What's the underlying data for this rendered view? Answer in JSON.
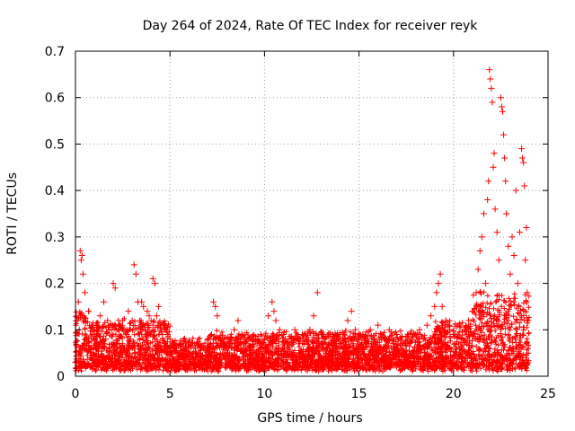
{
  "chart_data": {
    "type": "scatter",
    "title": "Day 264 of 2024, Rate Of TEC Index for receiver reyk",
    "xlabel": "GPS time / hours",
    "ylabel": "ROTI / TECUs",
    "xlim": [
      0,
      25
    ],
    "ylim": [
      0,
      0.7
    ],
    "x_ticks": [
      0,
      5,
      10,
      15,
      20,
      25
    ],
    "x_tick_labels": [
      "0",
      "5",
      "10",
      "15",
      "20",
      "25"
    ],
    "y_ticks": [
      0,
      0.1,
      0.2,
      0.3,
      0.4,
      0.5,
      0.6,
      0.7
    ],
    "y_tick_labels": [
      "0",
      "0.1",
      "0.2",
      "0.3",
      "0.4",
      "0.5",
      "0.6",
      "0.7"
    ],
    "grid": true,
    "marker": "plus",
    "color": "#ff0000",
    "series": [
      {
        "points": [
          [
            0.0,
            0.03
          ],
          [
            0.1,
            0.12
          ],
          [
            0.15,
            0.16
          ],
          [
            0.2,
            0.1
          ],
          [
            0.25,
            0.27
          ],
          [
            0.3,
            0.25
          ],
          [
            0.35,
            0.26
          ],
          [
            0.4,
            0.22
          ],
          [
            0.45,
            0.06
          ],
          [
            0.5,
            0.18
          ],
          [
            0.6,
            0.08
          ],
          [
            0.7,
            0.14
          ],
          [
            0.8,
            0.05
          ],
          [
            0.9,
            0.11
          ],
          [
            1.0,
            0.1
          ],
          [
            1.1,
            0.07
          ],
          [
            1.2,
            0.09
          ],
          [
            1.3,
            0.13
          ],
          [
            1.4,
            0.06
          ],
          [
            1.5,
            0.16
          ],
          [
            1.6,
            0.08
          ],
          [
            1.7,
            0.12
          ],
          [
            1.8,
            0.05
          ],
          [
            1.9,
            0.1
          ],
          [
            2.0,
            0.2
          ],
          [
            2.1,
            0.19
          ],
          [
            2.2,
            0.07
          ],
          [
            2.3,
            0.11
          ],
          [
            2.4,
            0.05
          ],
          [
            2.5,
            0.12
          ],
          [
            2.6,
            0.06
          ],
          [
            2.7,
            0.09
          ],
          [
            2.8,
            0.14
          ],
          [
            2.9,
            0.08
          ],
          [
            3.0,
            0.12
          ],
          [
            3.1,
            0.24
          ],
          [
            3.2,
            0.22
          ],
          [
            3.3,
            0.16
          ],
          [
            3.4,
            0.12
          ],
          [
            3.5,
            0.16
          ],
          [
            3.6,
            0.15
          ],
          [
            3.7,
            0.1
          ],
          [
            3.8,
            0.14
          ],
          [
            3.9,
            0.13
          ],
          [
            4.0,
            0.12
          ],
          [
            4.1,
            0.21
          ],
          [
            4.2,
            0.2
          ],
          [
            4.3,
            0.13
          ],
          [
            4.4,
            0.15
          ],
          [
            4.5,
            0.11
          ],
          [
            4.6,
            0.09
          ],
          [
            4.7,
            0.07
          ],
          [
            4.8,
            0.1
          ],
          [
            5.0,
            0.08
          ],
          [
            5.2,
            0.06
          ],
          [
            5.4,
            0.05
          ],
          [
            5.6,
            0.07
          ],
          [
            5.8,
            0.04
          ],
          [
            6.0,
            0.05
          ],
          [
            6.2,
            0.03
          ],
          [
            6.4,
            0.05
          ],
          [
            6.6,
            0.04
          ],
          [
            6.8,
            0.06
          ],
          [
            7.0,
            0.08
          ],
          [
            7.2,
            0.09
          ],
          [
            7.3,
            0.16
          ],
          [
            7.4,
            0.15
          ],
          [
            7.5,
            0.13
          ],
          [
            7.6,
            0.08
          ],
          [
            7.8,
            0.07
          ],
          [
            8.0,
            0.06
          ],
          [
            8.2,
            0.08
          ],
          [
            8.4,
            0.1
          ],
          [
            8.6,
            0.12
          ],
          [
            8.8,
            0.09
          ],
          [
            9.0,
            0.07
          ],
          [
            9.2,
            0.06
          ],
          [
            9.4,
            0.08
          ],
          [
            9.6,
            0.07
          ],
          [
            9.8,
            0.09
          ],
          [
            10.0,
            0.08
          ],
          [
            10.2,
            0.13
          ],
          [
            10.4,
            0.16
          ],
          [
            10.5,
            0.14
          ],
          [
            10.6,
            0.12
          ],
          [
            10.8,
            0.1
          ],
          [
            11.0,
            0.09
          ],
          [
            11.2,
            0.07
          ],
          [
            11.4,
            0.08
          ],
          [
            11.6,
            0.1
          ],
          [
            11.8,
            0.07
          ],
          [
            12.0,
            0.09
          ],
          [
            12.2,
            0.08
          ],
          [
            12.4,
            0.1
          ],
          [
            12.6,
            0.13
          ],
          [
            12.8,
            0.18
          ],
          [
            13.0,
            0.09
          ],
          [
            13.2,
            0.08
          ],
          [
            13.4,
            0.07
          ],
          [
            13.6,
            0.09
          ],
          [
            13.8,
            0.08
          ],
          [
            14.0,
            0.07
          ],
          [
            14.2,
            0.09
          ],
          [
            14.4,
            0.12
          ],
          [
            14.6,
            0.14
          ],
          [
            14.8,
            0.1
          ],
          [
            15.0,
            0.08
          ],
          [
            15.2,
            0.09
          ],
          [
            15.4,
            0.07
          ],
          [
            15.6,
            0.1
          ],
          [
            15.8,
            0.08
          ],
          [
            16.0,
            0.11
          ],
          [
            16.2,
            0.09
          ],
          [
            16.4,
            0.08
          ],
          [
            16.6,
            0.1
          ],
          [
            16.8,
            0.07
          ],
          [
            17.0,
            0.09
          ],
          [
            17.2,
            0.08
          ],
          [
            17.4,
            0.07
          ],
          [
            17.6,
            0.09
          ],
          [
            17.8,
            0.08
          ],
          [
            18.0,
            0.09
          ],
          [
            18.2,
            0.1
          ],
          [
            18.4,
            0.08
          ],
          [
            18.6,
            0.11
          ],
          [
            18.8,
            0.13
          ],
          [
            19.0,
            0.15
          ],
          [
            19.1,
            0.18
          ],
          [
            19.2,
            0.2
          ],
          [
            19.3,
            0.22
          ],
          [
            19.4,
            0.15
          ],
          [
            19.6,
            0.12
          ],
          [
            19.8,
            0.1
          ],
          [
            20.0,
            0.09
          ],
          [
            20.2,
            0.11
          ],
          [
            20.4,
            0.08
          ],
          [
            20.6,
            0.1
          ],
          [
            20.8,
            0.12
          ],
          [
            21.0,
            0.14
          ],
          [
            21.2,
            0.18
          ],
          [
            21.3,
            0.23
          ],
          [
            21.4,
            0.27
          ],
          [
            21.5,
            0.3
          ],
          [
            21.6,
            0.35
          ],
          [
            21.7,
            0.2
          ],
          [
            21.8,
            0.38
          ],
          [
            21.85,
            0.42
          ],
          [
            21.9,
            0.66
          ],
          [
            21.95,
            0.64
          ],
          [
            22.0,
            0.62
          ],
          [
            22.05,
            0.59
          ],
          [
            22.1,
            0.45
          ],
          [
            22.15,
            0.48
          ],
          [
            22.2,
            0.36
          ],
          [
            22.3,
            0.31
          ],
          [
            22.4,
            0.25
          ],
          [
            22.5,
            0.6
          ],
          [
            22.55,
            0.58
          ],
          [
            22.6,
            0.57
          ],
          [
            22.65,
            0.52
          ],
          [
            22.7,
            0.47
          ],
          [
            22.75,
            0.42
          ],
          [
            22.8,
            0.35
          ],
          [
            22.9,
            0.28
          ],
          [
            23.0,
            0.22
          ],
          [
            23.1,
            0.3
          ],
          [
            23.2,
            0.26
          ],
          [
            23.3,
            0.4
          ],
          [
            23.4,
            0.2
          ],
          [
            23.5,
            0.31
          ],
          [
            23.6,
            0.49
          ],
          [
            23.65,
            0.47
          ],
          [
            23.7,
            0.46
          ],
          [
            23.75,
            0.41
          ],
          [
            23.8,
            0.25
          ],
          [
            23.85,
            0.32
          ],
          [
            23.9,
            0.18
          ],
          [
            23.95,
            0.12
          ]
        ]
      }
    ]
  }
}
